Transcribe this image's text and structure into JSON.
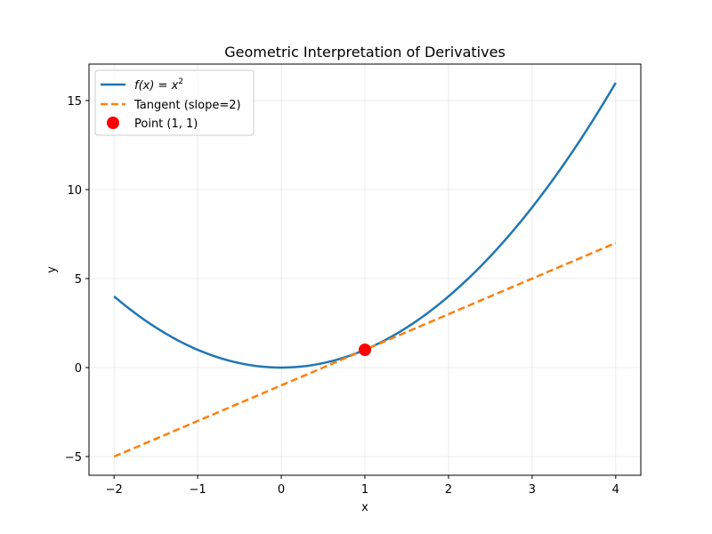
{
  "chart_data": {
    "type": "line",
    "title": "Geometric Interpretation of Derivatives",
    "xlabel": "x",
    "ylabel": "y",
    "xlim": [
      -2.3,
      4.3
    ],
    "ylim": [
      -6.05,
      17.05
    ],
    "xticks": [
      -2,
      -1,
      0,
      1,
      2,
      3,
      4
    ],
    "yticks": [
      -5,
      0,
      5,
      10,
      15
    ],
    "xtick_labels": [
      "−2",
      "−1",
      "0",
      "1",
      "2",
      "3",
      "4"
    ],
    "ytick_labels": [
      "−5",
      "0",
      "5",
      "10",
      "15"
    ],
    "grid": true,
    "legend_position": "top-left",
    "series": [
      {
        "name": "f(x) = x²",
        "name_prefix": "f(x) = x",
        "name_superscript": "2",
        "kind": "line",
        "style": "solid",
        "color": "#1f77b4",
        "function": "x^2",
        "x": [
          -2,
          -1.5,
          -1,
          -0.5,
          0,
          0.5,
          1,
          1.5,
          2,
          2.5,
          3,
          3.5,
          4
        ],
        "values": [
          4,
          2.25,
          1,
          0.25,
          0,
          0.25,
          1,
          2.25,
          4,
          6.25,
          9,
          12.25,
          16
        ]
      },
      {
        "name": "Tangent (slope=2)",
        "kind": "line",
        "style": "dashed",
        "color": "#ff7f0e",
        "x": [
          -2,
          4
        ],
        "values": [
          -5,
          7
        ]
      },
      {
        "name": "Point (1, 1)",
        "kind": "scatter",
        "color": "#ff0000",
        "x": [
          1
        ],
        "values": [
          1
        ]
      }
    ]
  }
}
